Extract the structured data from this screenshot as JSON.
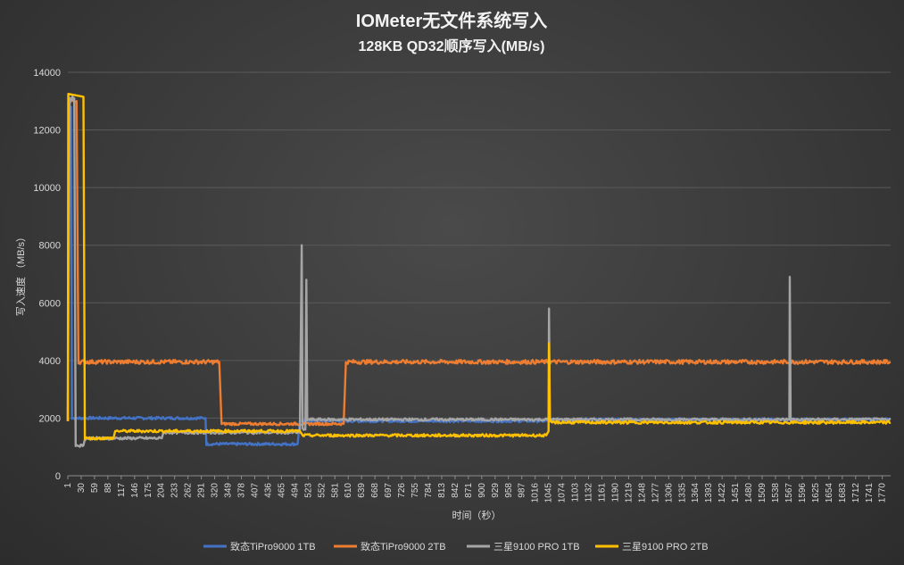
{
  "chart_data": {
    "type": "line",
    "title": "IOMeter无文件系统写入",
    "subtitle": "128KB QD32顺序写入(MB/s)",
    "xlabel": "时间（秒）",
    "ylabel": "写入速度 （MB/s）",
    "ylim": [
      0,
      14000
    ],
    "yticks": [
      "0",
      "2000",
      "4000",
      "6000",
      "8000",
      "10000",
      "12000",
      "14000"
    ],
    "xlim": [
      1,
      1788
    ],
    "xticks": [
      "1",
      "30",
      "59",
      "88",
      "117",
      "146",
      "175",
      "204",
      "233",
      "262",
      "291",
      "320",
      "349",
      "378",
      "407",
      "436",
      "465",
      "494",
      "523",
      "552",
      "581",
      "610",
      "639",
      "668",
      "697",
      "726",
      "755",
      "784",
      "813",
      "842",
      "871",
      "900",
      "929",
      "958",
      "987",
      "1016",
      "1045",
      "1074",
      "1103",
      "1132",
      "1161",
      "1190",
      "1219",
      "1248",
      "1277",
      "1306",
      "1335",
      "1364",
      "1393",
      "1422",
      "1451",
      "1480",
      "1509",
      "1538",
      "1567",
      "1596",
      "1625",
      "1654",
      "1683",
      "1712",
      "1741",
      "1770"
    ],
    "legend_position": "bottom",
    "grid": true,
    "series": [
      {
        "name": "致态TiPro9000 1TB",
        "color": "#4472c4",
        "points": [
          [
            1,
            1900
          ],
          [
            3,
            12800
          ],
          [
            8,
            12800
          ],
          [
            10,
            2000
          ],
          [
            300,
            2000
          ],
          [
            302,
            1100
          ],
          [
            500,
            1100
          ],
          [
            505,
            1900
          ],
          [
            1045,
            1900
          ],
          [
            1048,
            1950
          ],
          [
            1788,
            1950
          ]
        ]
      },
      {
        "name": "致态TiPro9000 2TB",
        "color": "#ed7d31",
        "points": [
          [
            1,
            1900
          ],
          [
            4,
            13000
          ],
          [
            20,
            13000
          ],
          [
            24,
            3950
          ],
          [
            330,
            3950
          ],
          [
            335,
            1800
          ],
          [
            600,
            1800
          ],
          [
            605,
            3950
          ],
          [
            1788,
            3950
          ]
        ]
      },
      {
        "name": "三星9100 PRO 1TB",
        "color": "#a5a5a5",
        "points": [
          [
            1,
            1900
          ],
          [
            5,
            13100
          ],
          [
            15,
            13100
          ],
          [
            18,
            1050
          ],
          [
            35,
            1050
          ],
          [
            38,
            1300
          ],
          [
            205,
            1300
          ],
          [
            208,
            1500
          ],
          [
            505,
            1500
          ],
          [
            509,
            8000
          ],
          [
            511,
            1600
          ],
          [
            517,
            1600
          ],
          [
            519,
            6800
          ],
          [
            521,
            1950
          ],
          [
            1045,
            1950
          ],
          [
            1046,
            5800
          ],
          [
            1048,
            1950
          ],
          [
            1568,
            1950
          ],
          [
            1569,
            6900
          ],
          [
            1571,
            1950
          ],
          [
            1788,
            1950
          ]
        ]
      },
      {
        "name": "三星9100 PRO 2TB",
        "color": "#ffc000",
        "points": [
          [
            1,
            1900
          ],
          [
            2,
            13250
          ],
          [
            35,
            13150
          ],
          [
            38,
            1300
          ],
          [
            100,
            1300
          ],
          [
            104,
            1550
          ],
          [
            505,
            1550
          ],
          [
            510,
            1400
          ],
          [
            1040,
            1400
          ],
          [
            1045,
            1550
          ],
          [
            1046,
            4600
          ],
          [
            1048,
            1850
          ],
          [
            1788,
            1850
          ]
        ]
      }
    ]
  }
}
